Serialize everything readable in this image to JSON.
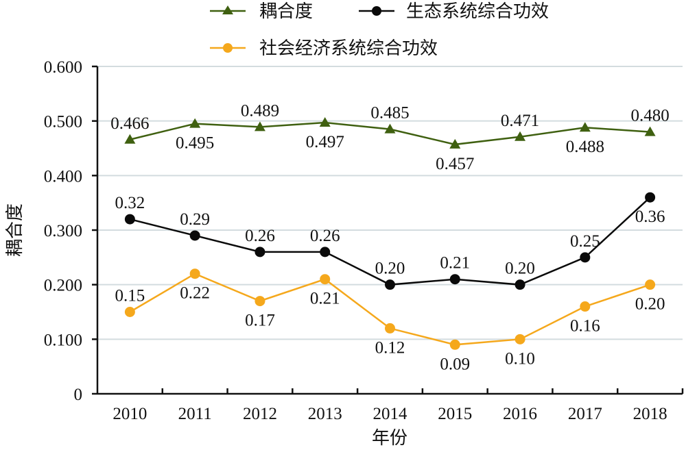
{
  "chart_data": {
    "type": "line",
    "title": "",
    "xlabel": "年份",
    "ylabel": "耦合度",
    "categories": [
      "2010",
      "2011",
      "2012",
      "2013",
      "2014",
      "2015",
      "2016",
      "2017",
      "2018"
    ],
    "ylim": [
      0,
      0.6
    ],
    "yticks": [
      0,
      0.1,
      0.2,
      0.3,
      0.4,
      0.5,
      0.6
    ],
    "ytick_labels": [
      "0",
      "0.100",
      "0.200",
      "0.300",
      "0.400",
      "0.500",
      "0.600"
    ],
    "grid": true,
    "legend_position": "top",
    "series": [
      {
        "name": "耦合度",
        "color": "#3f6010",
        "marker": "triangle",
        "values": [
          0.466,
          0.495,
          0.489,
          0.497,
          0.485,
          0.457,
          0.471,
          0.488,
          0.48
        ],
        "labels": [
          "0.466",
          "0.495",
          "0.489",
          "0.497",
          "0.485",
          "0.457",
          "0.471",
          "0.488",
          "0.480"
        ],
        "label_positions": [
          "above",
          "below",
          "above",
          "below",
          "above",
          "below",
          "above",
          "below",
          "above"
        ]
      },
      {
        "name": "生态系统综合功效",
        "color": "#0a0a0a",
        "marker": "circle",
        "values": [
          0.32,
          0.29,
          0.26,
          0.26,
          0.2,
          0.21,
          0.2,
          0.25,
          0.36
        ],
        "labels": [
          "0.32",
          "0.29",
          "0.26",
          "0.26",
          "0.20",
          "0.21",
          "0.20",
          "0.25",
          "0.36"
        ],
        "label_positions": [
          "above",
          "above",
          "above",
          "above",
          "above",
          "above",
          "above",
          "above",
          "below"
        ]
      },
      {
        "name": "社会经济系统综合功效",
        "color": "#f5a81c",
        "marker": "circle",
        "values": [
          0.15,
          0.22,
          0.17,
          0.21,
          0.12,
          0.09,
          0.1,
          0.16,
          0.2
        ],
        "labels": [
          "0.15",
          "0.22",
          "0.17",
          "0.21",
          "0.12",
          "0.09",
          "0.10",
          "0.16",
          "0.20"
        ],
        "label_positions": [
          "above",
          "below",
          "below",
          "below",
          "below",
          "below",
          "below",
          "below",
          "below"
        ]
      }
    ]
  }
}
